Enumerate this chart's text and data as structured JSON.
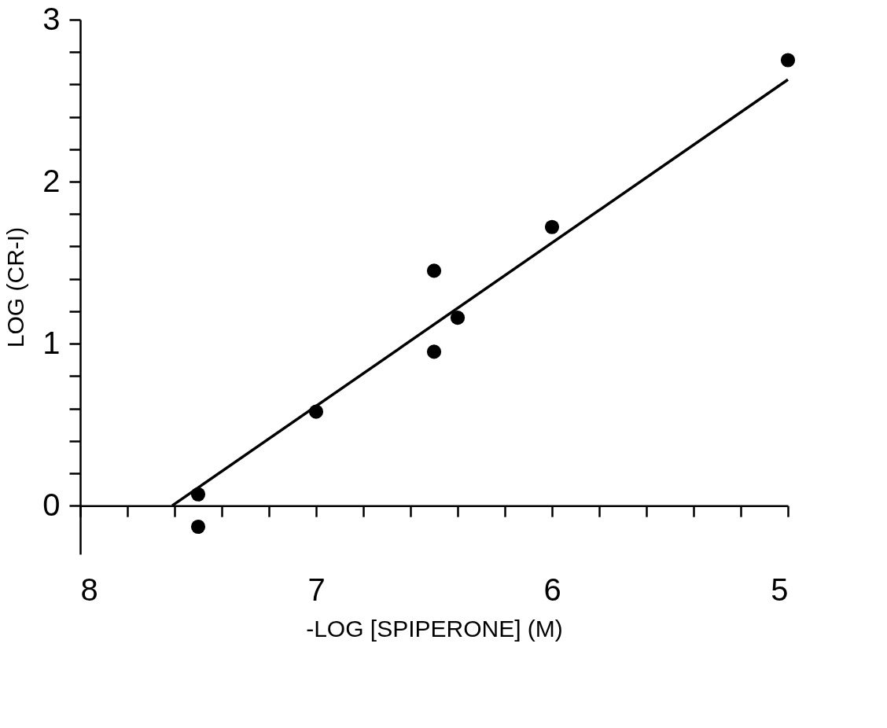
{
  "chart_data": {
    "type": "scatter",
    "xlabel": "-LOG [SPIPERONE] (M)",
    "ylabel": "LOG (CR-I)",
    "xlim": [
      8,
      5
    ],
    "ylim": [
      -0.3,
      3
    ],
    "xticks": [
      8,
      {
        "value": 7.8,
        "label": null
      },
      {
        "value": 7.6,
        "label": null
      },
      {
        "value": 7.4,
        "label": null
      },
      {
        "value": 7.2,
        "label": null
      },
      7,
      {
        "value": 6.8,
        "label": null
      },
      {
        "value": 6.6,
        "label": null
      },
      {
        "value": 6.4,
        "label": null
      },
      {
        "value": 6.2,
        "label": null
      },
      6,
      {
        "value": 5.8,
        "label": null
      },
      {
        "value": 5.6,
        "label": null
      },
      {
        "value": 5.4,
        "label": null
      },
      {
        "value": 5.2,
        "label": null
      },
      5
    ],
    "yticks": [
      0,
      {
        "value": 0.2,
        "label": null
      },
      {
        "value": 0.4,
        "label": null
      },
      {
        "value": 0.6,
        "label": null
      },
      {
        "value": 0.8,
        "label": null
      },
      1,
      {
        "value": 1.2,
        "label": null
      },
      {
        "value": 1.4,
        "label": null
      },
      {
        "value": 1.6,
        "label": null
      },
      {
        "value": 1.8,
        "label": null
      },
      2,
      {
        "value": 2.2,
        "label": null
      },
      {
        "value": 2.4,
        "label": null
      },
      {
        "value": 2.6,
        "label": null
      },
      {
        "value": 2.8,
        "label": null
      },
      3
    ],
    "grid": false,
    "legend": false,
    "marker": "circle",
    "series": [
      {
        "color": "#000000",
        "x": [
          7.5,
          7.5,
          7.0,
          6.5,
          6.5,
          6.4,
          6.0,
          5.0
        ],
        "values": [
          0.07,
          -0.13,
          0.58,
          1.45,
          0.95,
          1.16,
          1.72,
          2.75
        ]
      },
      {
        "type": "line",
        "marker": "none",
        "color": "#000000",
        "x": [
          7.61,
          5.0
        ],
        "values": [
          0.0,
          2.63
        ]
      }
    ]
  }
}
